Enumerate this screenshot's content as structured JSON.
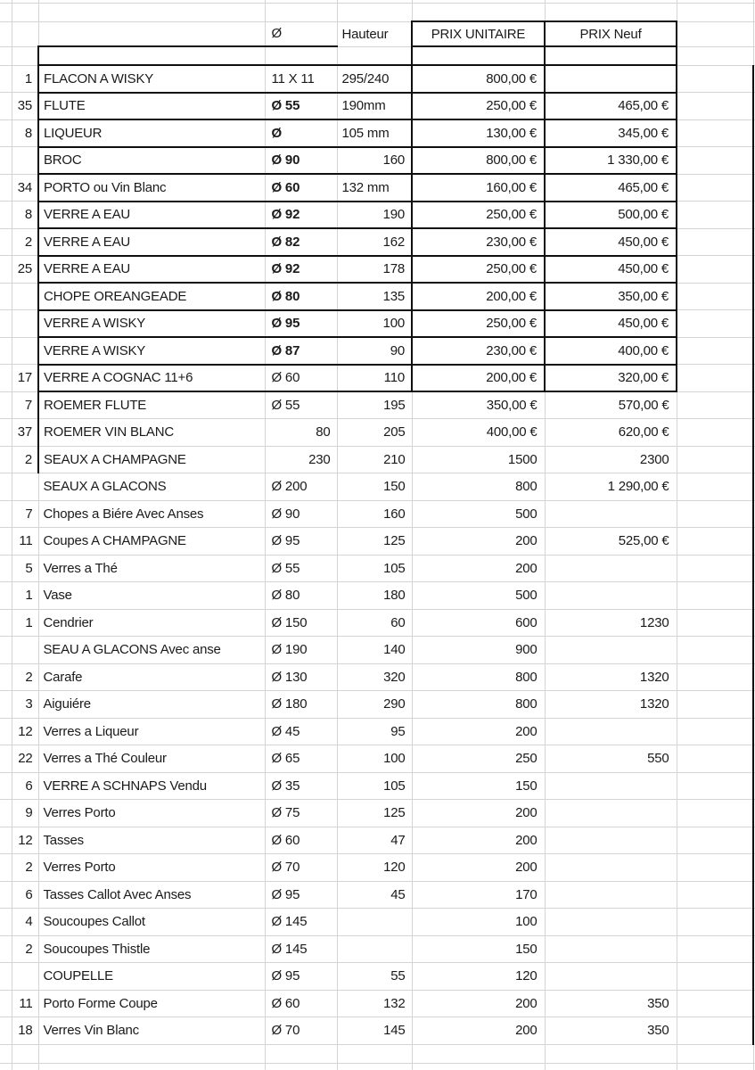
{
  "sheet": {
    "bg_color": "#ffffff",
    "grid_color": "#d4d4d4",
    "table_border_color": "#0f0f0f",
    "text_color": "#1a1a1a"
  },
  "header": {
    "dia": "Ø",
    "hauteur": "Hauteur",
    "prix_unitaire": "PRIX UNITAIRE",
    "prix_neuf": "PRIX Neuf"
  },
  "table": {
    "columns": [
      "quantity",
      "name",
      "diameter",
      "hauteur",
      "prix_unitaire",
      "prix_neuf"
    ],
    "rows": [
      {
        "qty": "1",
        "name": "FLACON A WISKY",
        "dia": "11 X 11",
        "haut": "295/240",
        "unit": "800,00 €",
        "neuf": ""
      },
      {
        "qty": "35",
        "name": "FLUTE",
        "dia": "Ø 55",
        "haut": "190mm",
        "unit": "250,00 €",
        "neuf": "465,00 €"
      },
      {
        "qty": "8",
        "name": "LIQUEUR",
        "dia": "Ø",
        "haut": "105 mm",
        "unit": "130,00 €",
        "neuf": "345,00 €"
      },
      {
        "qty": "",
        "name": "BROC",
        "dia": "Ø 90",
        "haut": "160",
        "unit": "800,00 €",
        "neuf": "1 330,00 €"
      },
      {
        "qty": "34",
        "name": "PORTO ou Vin Blanc",
        "dia": "Ø 60",
        "haut": "132 mm",
        "unit": "160,00 €",
        "neuf": "465,00 €"
      },
      {
        "qty": "8",
        "name": "VERRE A EAU",
        "dia": "Ø 92",
        "haut": "190",
        "unit": "250,00 €",
        "neuf": "500,00 €"
      },
      {
        "qty": "2",
        "name": "VERRE A EAU",
        "dia": "Ø 82",
        "haut": "162",
        "unit": "230,00 €",
        "neuf": "450,00 €"
      },
      {
        "qty": "25",
        "name": "VERRE A EAU",
        "dia": "Ø 92",
        "haut": "178",
        "unit": "250,00 €",
        "neuf": "450,00 €"
      },
      {
        "qty": "",
        "name": "CHOPE OREANGEADE",
        "dia": "Ø 80",
        "haut": "135",
        "unit": "200,00 €",
        "neuf": "350,00 €"
      },
      {
        "qty": "",
        "name": "VERRE A WISKY",
        "dia": "Ø 95",
        "haut": "100",
        "unit": "250,00 €",
        "neuf": "450,00 €"
      },
      {
        "qty": "",
        "name": "VERRE A WISKY",
        "dia": "Ø 87",
        "haut": "90",
        "unit": "230,00 €",
        "neuf": "400,00 €"
      },
      {
        "qty": "17",
        "name": "VERRE A COGNAC 11+6",
        "dia": "Ø 60",
        "haut": "110",
        "unit": "200,00 €",
        "neuf": "320,00 €"
      },
      {
        "qty": "7",
        "name": "ROEMER FLUTE",
        "dia": "Ø 55",
        "haut": "195",
        "unit": "350,00 €",
        "neuf": "570,00 €"
      },
      {
        "qty": "37",
        "name": "ROEMER VIN BLANC",
        "dia": "80",
        "haut": "205",
        "unit": "400,00 €",
        "neuf": "620,00 €"
      },
      {
        "qty": "2",
        "name": "SEAUX A CHAMPAGNE",
        "dia": "230",
        "haut": "210",
        "unit": "1500",
        "neuf": "2300"
      },
      {
        "qty": "",
        "name": "SEAUX A GLACONS",
        "dia": "Ø 200",
        "haut": "150",
        "unit": "800",
        "neuf": "1 290,00 €"
      },
      {
        "qty": "7",
        "name": "Chopes a Biére Avec Anses",
        "dia": "Ø 90",
        "haut": "160",
        "unit": "500",
        "neuf": ""
      },
      {
        "qty": "11",
        "name": "Coupes A CHAMPAGNE",
        "dia": "Ø 95",
        "haut": "125",
        "unit": "200",
        "neuf": "525,00 €"
      },
      {
        "qty": "5",
        "name": "Verres a Thé",
        "dia": "Ø 55",
        "haut": "105",
        "unit": "200",
        "neuf": ""
      },
      {
        "qty": "1",
        "name": "Vase",
        "dia": "Ø 80",
        "haut": "180",
        "unit": "500",
        "neuf": ""
      },
      {
        "qty": "1",
        "name": "Cendrier",
        "dia": "Ø 150",
        "haut": "60",
        "unit": "600",
        "neuf": "1230"
      },
      {
        "qty": "",
        "name": "SEAU A GLACONS Avec anse",
        "dia": "Ø 190",
        "haut": "140",
        "unit": "900",
        "neuf": ""
      },
      {
        "qty": "2",
        "name": "Carafe",
        "dia": "Ø 130",
        "haut": "320",
        "unit": "800",
        "neuf": "1320"
      },
      {
        "qty": "3",
        "name": "Aiguiére",
        "dia": "Ø 180",
        "haut": "290",
        "unit": "800",
        "neuf": "1320"
      },
      {
        "qty": "12",
        "name": "Verres a Liqueur",
        "dia": "Ø 45",
        "haut": "95",
        "unit": "200",
        "neuf": ""
      },
      {
        "qty": "22",
        "name": "Verres a Thé Couleur",
        "dia": "Ø 65",
        "haut": "100",
        "unit": "250",
        "neuf": "550"
      },
      {
        "qty": "6",
        "name": "VERRE A SCHNAPS Vendu",
        "dia": "Ø 35",
        "haut": "105",
        "unit": "150",
        "neuf": ""
      },
      {
        "qty": "9",
        "name": "Verres Porto",
        "dia": "Ø 75",
        "haut": "125",
        "unit": "200",
        "neuf": ""
      },
      {
        "qty": "12",
        "name": "Tasses",
        "dia": "Ø 60",
        "haut": "47",
        "unit": "200",
        "neuf": ""
      },
      {
        "qty": "2",
        "name": "Verres Porto",
        "dia": "Ø 70",
        "haut": "120",
        "unit": "200",
        "neuf": ""
      },
      {
        "qty": "6",
        "name": "Tasses Callot Avec Anses",
        "dia": "Ø 95",
        "haut": "45",
        "unit": "170",
        "neuf": ""
      },
      {
        "qty": "4",
        "name": "Soucoupes Callot",
        "dia": "Ø 145",
        "haut": "",
        "unit": "100",
        "neuf": ""
      },
      {
        "qty": "2",
        "name": "Soucoupes Thistle",
        "dia": "Ø 145",
        "haut": "",
        "unit": "150",
        "neuf": ""
      },
      {
        "qty": "",
        "name": "COUPELLE",
        "dia": "Ø 95",
        "haut": "55",
        "unit": "120",
        "neuf": ""
      },
      {
        "qty": "11",
        "name": "Porto Forme Coupe",
        "dia": "Ø 60",
        "haut": "132",
        "unit": "200",
        "neuf": "350"
      },
      {
        "qty": "18",
        "name": "Verres Vin Blanc",
        "dia": "Ø 70",
        "haut": "145",
        "unit": "200",
        "neuf": "350"
      }
    ],
    "style_rules": {
      "bold_dia_row_range": [
        1,
        10
      ],
      "black_box_last_row": 11,
      "black_left_edge_last_row": 14
    }
  }
}
